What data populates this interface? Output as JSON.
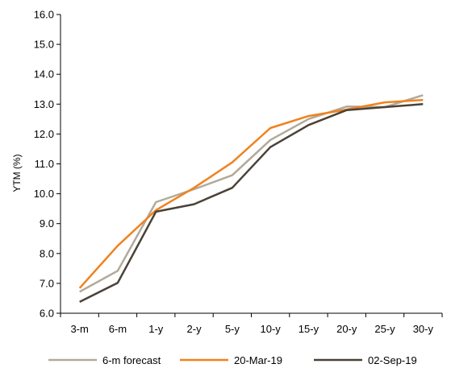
{
  "chart_data": {
    "type": "line",
    "categories": [
      "3-m",
      "6-m",
      "1-y",
      "2-y",
      "5-y",
      "10-y",
      "15-y",
      "20-y",
      "25-y",
      "30-y"
    ],
    "ylabel": "YTM (%)",
    "ylim": [
      6.0,
      16.0
    ],
    "yticks": [
      "6.0",
      "7.0",
      "8.0",
      "9.0",
      "10.0",
      "11.0",
      "12.0",
      "13.0",
      "14.0",
      "15.0",
      "16.0"
    ],
    "grid": false,
    "legend_position": "bottom",
    "series": [
      {
        "name": "6-m forecast",
        "color": "#b2a999",
        "values": [
          6.72,
          7.42,
          9.72,
          10.15,
          10.62,
          11.8,
          12.5,
          12.92,
          12.9,
          13.3
        ]
      },
      {
        "name": "20-Mar-19",
        "color": "#f0821e",
        "values": [
          6.84,
          8.26,
          9.45,
          10.2,
          11.05,
          12.2,
          12.6,
          12.82,
          13.06,
          13.14
        ]
      },
      {
        "name": "02-Sep-19",
        "color": "#4a4237",
        "values": [
          6.38,
          7.02,
          9.4,
          9.65,
          10.2,
          11.56,
          12.3,
          12.8,
          12.9,
          13.0
        ]
      }
    ]
  }
}
